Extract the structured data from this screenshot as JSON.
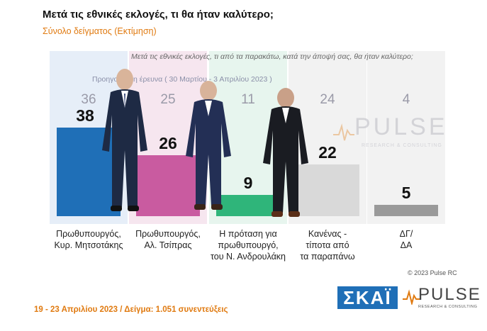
{
  "title": "Μετά τις εθνικές εκλογές, τι θα ήταν καλύτερο;",
  "subtitle": "Σύνολο δείγματος  (Εκτίμηση)",
  "question": "Μετά τις εθνικές εκλογές, τι από τα παρακάτω, κατά την άποψή σας, θα ήταν καλύτερο;",
  "previous_label": "Προηγούμενη έρευνα  ( 30 Μαρτίου - 3 Απριλίου  2023 )",
  "watermark": {
    "word": "PULSE",
    "sub": "RESEARCH & CONSULTING"
  },
  "copyright": "© 2023 Pulse RC",
  "footer": "19 - 23  Απριλίου  2023  /  Δείγμα:  1.051 συνεντεύξεις",
  "logos": {
    "skai": "ΣΚΑΪ",
    "pulse": "PULSE",
    "pulse_sub": "RESEARCH & CONSULTING"
  },
  "chart_data": {
    "type": "bar",
    "categories": [
      "Πρωθυπουργός,\nΚυρ. Μητσοτάκης",
      "Πρωθυπουργός,\nΑλ. Τσίπρας",
      "Η πρόταση για\nπρωθυπουργό,\nτου Ν. Ανδρουλάκη",
      "Κανένας -\nτίποτα από\nτα παραπάνω",
      "ΔΓ/\nΔΑ"
    ],
    "series": [
      {
        "values": [
          38,
          26,
          9,
          22,
          5
        ]
      },
      {
        "name": "Προηγούμενη έρευνα  ( 30 Μαρτίου - 3 Απριλίου  2023 )",
        "values": [
          36,
          25,
          11,
          24,
          4
        ]
      }
    ],
    "colors": [
      "#1f6fb7",
      "#c95ba0",
      "#2fb57a",
      "#d9d9d9",
      "#9a9a9a"
    ],
    "background_colors": [
      "#e6eef8",
      "#f6e6ef",
      "#e7f5ee",
      "#f2f2f2",
      "#f2f2f2"
    ],
    "ylim": [
      0,
      40
    ]
  }
}
